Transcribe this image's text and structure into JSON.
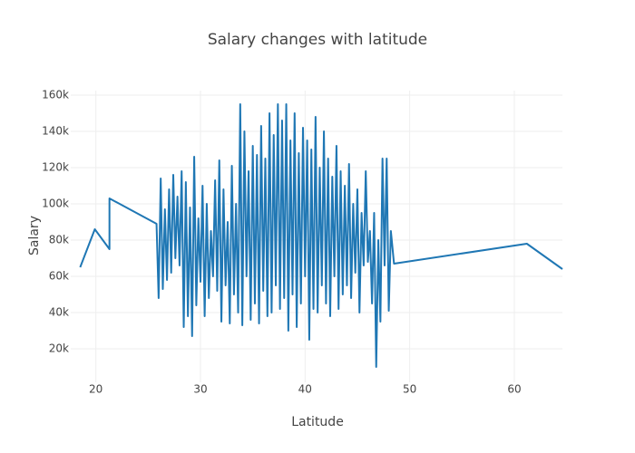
{
  "chart_data": {
    "type": "line",
    "title": "Salary changes with latitude",
    "x_label": "Latitude",
    "y_label": "Salary",
    "color": "#1f77b4",
    "grid": true,
    "xlim": [
      17.6,
      64.6
    ],
    "xticks": [
      20,
      30,
      40,
      50,
      60
    ],
    "ylim": [
      1500,
      162500
    ],
    "yticks": [
      {
        "value": 20000,
        "label": "20k"
      },
      {
        "value": 40000,
        "label": "40k"
      },
      {
        "value": 60000,
        "label": "60k"
      },
      {
        "value": 80000,
        "label": "80k"
      },
      {
        "value": 100000,
        "label": "100k"
      },
      {
        "value": 120000,
        "label": "120k"
      },
      {
        "value": 140000,
        "label": "140k"
      },
      {
        "value": 160000,
        "label": "160k"
      }
    ],
    "x": [
      18.5,
      19.9,
      21.3,
      21.3,
      25.8,
      26.0,
      26.2,
      26.4,
      26.6,
      26.8,
      27.0,
      27.2,
      27.4,
      27.6,
      27.8,
      28.0,
      28.2,
      28.4,
      28.6,
      28.8,
      29.0,
      29.2,
      29.4,
      29.6,
      29.8,
      30.0,
      30.2,
      30.4,
      30.6,
      30.8,
      31.0,
      31.2,
      31.4,
      31.6,
      31.8,
      32.0,
      32.2,
      32.4,
      32.6,
      32.8,
      33.0,
      33.2,
      33.4,
      33.6,
      33.8,
      34.0,
      34.2,
      34.4,
      34.6,
      34.8,
      35.0,
      35.2,
      35.4,
      35.6,
      35.8,
      36.0,
      36.2,
      36.4,
      36.6,
      36.8,
      37.0,
      37.2,
      37.4,
      37.6,
      37.8,
      38.0,
      38.2,
      38.4,
      38.6,
      38.8,
      39.0,
      39.2,
      39.4,
      39.6,
      39.8,
      40.0,
      40.2,
      40.4,
      40.6,
      40.8,
      41.0,
      41.2,
      41.4,
      41.6,
      41.8,
      42.0,
      42.2,
      42.4,
      42.6,
      42.8,
      43.0,
      43.2,
      43.4,
      43.6,
      43.8,
      44.0,
      44.2,
      44.4,
      44.6,
      44.8,
      45.0,
      45.2,
      45.4,
      45.6,
      45.8,
      46.0,
      46.2,
      46.4,
      46.6,
      46.8,
      47.0,
      47.2,
      47.4,
      47.6,
      47.8,
      48.0,
      48.2,
      48.5,
      61.2,
      64.6
    ],
    "values": [
      65000,
      86000,
      75000,
      103000,
      89000,
      48000,
      114000,
      53000,
      97000,
      58000,
      108000,
      62000,
      116000,
      70000,
      104000,
      66000,
      118000,
      32000,
      112000,
      38000,
      98000,
      27000,
      126000,
      44000,
      92000,
      57000,
      110000,
      38000,
      100000,
      48000,
      85000,
      60000,
      113000,
      52000,
      124000,
      35000,
      108000,
      55000,
      90000,
      34000,
      121000,
      50000,
      100000,
      40000,
      155000,
      33000,
      140000,
      60000,
      118000,
      36000,
      132000,
      45000,
      127000,
      34000,
      143000,
      52000,
      125000,
      38000,
      150000,
      40000,
      138000,
      55000,
      155000,
      42000,
      146000,
      48000,
      155000,
      30000,
      135000,
      50000,
      150000,
      32000,
      128000,
      45000,
      142000,
      60000,
      135000,
      25000,
      130000,
      42000,
      148000,
      40000,
      120000,
      55000,
      140000,
      45000,
      125000,
      38000,
      115000,
      60000,
      132000,
      42000,
      118000,
      50000,
      110000,
      55000,
      122000,
      48000,
      100000,
      62000,
      108000,
      40000,
      95000,
      66000,
      118000,
      68000,
      85000,
      45000,
      95000,
      10000,
      80000,
      35000,
      125000,
      66000,
      125000,
      41000,
      85000,
      67000,
      78000,
      64000
    ]
  }
}
